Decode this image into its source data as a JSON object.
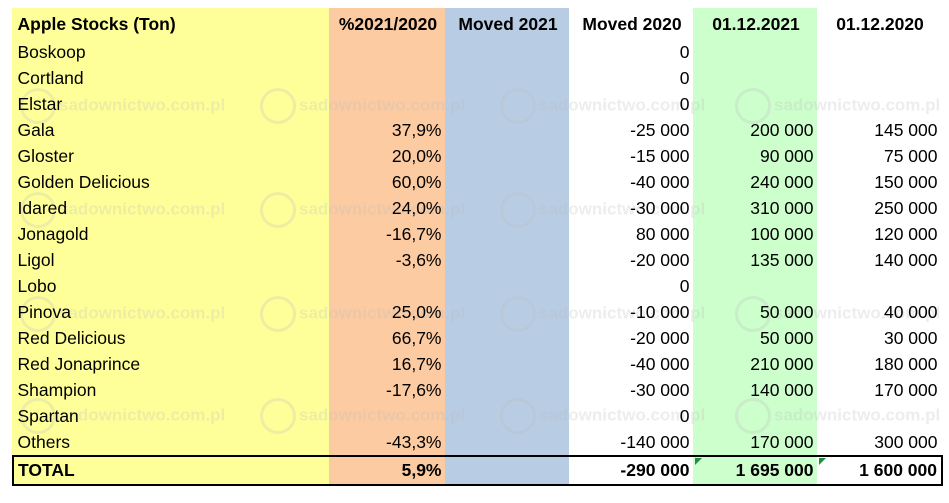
{
  "table": {
    "headers": [
      "Apple Stocks (Ton)",
      "%2021/2020",
      "Moved 2021",
      "Moved 2020",
      "01.12.2021",
      "01.12.2020"
    ],
    "rows": [
      {
        "name": "Boskoop",
        "pct": "",
        "moved2021": "",
        "moved2020": "0",
        "d2021": "",
        "d2020": ""
      },
      {
        "name": "Cortland",
        "pct": "",
        "moved2021": "",
        "moved2020": "0",
        "d2021": "",
        "d2020": ""
      },
      {
        "name": "Elstar",
        "pct": "",
        "moved2021": "",
        "moved2020": "0",
        "d2021": "",
        "d2020": ""
      },
      {
        "name": "Gala",
        "pct": "37,9%",
        "moved2021": "",
        "moved2020": "-25 000",
        "d2021": "200 000",
        "d2020": "145 000"
      },
      {
        "name": "Gloster",
        "pct": "20,0%",
        "moved2021": "",
        "moved2020": "-15 000",
        "d2021": "90 000",
        "d2020": "75 000"
      },
      {
        "name": "Golden Delicious",
        "pct": "60,0%",
        "moved2021": "",
        "moved2020": "-40 000",
        "d2021": "240 000",
        "d2020": "150 000"
      },
      {
        "name": "Idared",
        "pct": "24,0%",
        "moved2021": "",
        "moved2020": "-30 000",
        "d2021": "310 000",
        "d2020": "250 000"
      },
      {
        "name": "Jonagold",
        "pct": "-16,7%",
        "moved2021": "",
        "moved2020": "80 000",
        "d2021": "100 000",
        "d2020": "120 000"
      },
      {
        "name": "Ligol",
        "pct": "-3,6%",
        "moved2021": "",
        "moved2020": "-20 000",
        "d2021": "135 000",
        "d2020": "140 000"
      },
      {
        "name": "Lobo",
        "pct": "",
        "moved2021": "",
        "moved2020": "0",
        "d2021": "",
        "d2020": ""
      },
      {
        "name": "Pinova",
        "pct": "25,0%",
        "moved2021": "",
        "moved2020": "-10 000",
        "d2021": "50 000",
        "d2020": "40 000"
      },
      {
        "name": "Red Delicious",
        "pct": "66,7%",
        "moved2021": "",
        "moved2020": "-20 000",
        "d2021": "50 000",
        "d2020": "30 000"
      },
      {
        "name": "Red Jonaprince",
        "pct": "16,7%",
        "moved2021": "",
        "moved2020": "-40 000",
        "d2021": "210 000",
        "d2020": "180 000"
      },
      {
        "name": "Shampion",
        "pct": "-17,6%",
        "moved2021": "",
        "moved2020": "-30 000",
        "d2021": "140 000",
        "d2020": "170 000"
      },
      {
        "name": "Spartan",
        "pct": "",
        "moved2021": "",
        "moved2020": "0",
        "d2021": "",
        "d2020": ""
      },
      {
        "name": "Others",
        "pct": "-43,3%",
        "moved2021": "",
        "moved2020": "-140 000",
        "d2021": "170 000",
        "d2020": "300 000"
      }
    ],
    "total": {
      "name": "TOTAL",
      "pct": "5,9%",
      "moved2021": "",
      "moved2020": "-290 000",
      "d2021": "1 695 000",
      "d2020": "1 600 000"
    }
  },
  "watermark": "sadownictwo.com.pl",
  "colors": {
    "col_name": "#ffff99",
    "col_pct": "#fccba1",
    "col_moved2021": "#b8cce4",
    "col_d2021": "#ccffcc",
    "indicator": "#1f8f3f"
  }
}
